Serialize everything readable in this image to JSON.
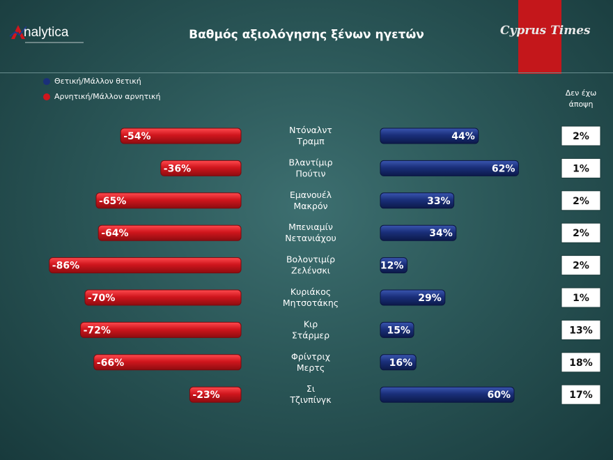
{
  "header": {
    "title": "Βαθμός αξιολόγησης ξένων ηγετών",
    "logo_left": "nalytica",
    "logo_right": "Cyprus Times"
  },
  "legend": {
    "positive": "Θετική/Μάλλον θετική",
    "negative": "Αρνητική/Μάλλον αρνητική",
    "positive_color": "#1a2f7a",
    "negative_color": "#d0161d"
  },
  "no_opinion_header": [
    "Δεν έχω",
    "άποψη"
  ],
  "chart_data": {
    "type": "bar",
    "title": "Βαθμός αξιολόγησης ξένων ηγετών",
    "orientation": "horizontal-diverging",
    "categories": [
      [
        "Ντόναλντ",
        "Τραμπ"
      ],
      [
        "Βλαντίμιρ",
        "Πούτιν"
      ],
      [
        "Εμανουέλ",
        "Μακρόν"
      ],
      [
        "Μπενιαμίν",
        "Νετανιάχου"
      ],
      [
        "Βολοντιμίρ",
        "Ζελένσκι"
      ],
      [
        "Κυριάκος",
        "Μητσοτάκης"
      ],
      [
        "Κιρ",
        "Στάρμερ"
      ],
      [
        "Φρίντριχ",
        "Μερτς"
      ],
      [
        "Σι",
        "Τζινπίνγκ"
      ]
    ],
    "series": [
      {
        "name": "Θετική/Μάλλον θετική",
        "values": [
          44,
          62,
          33,
          34,
          12,
          29,
          15,
          16,
          60
        ],
        "labels": [
          "44%",
          "62%",
          "33%",
          "34%",
          "12%",
          "29%",
          "15%",
          "16%",
          "60%"
        ],
        "color": "#1a2f7a"
      },
      {
        "name": "Αρνητική/Μάλλον αρνητική",
        "values": [
          -54,
          -36,
          -65,
          -64,
          -86,
          -70,
          -72,
          -66,
          -23
        ],
        "labels": [
          "-54%",
          "-36%",
          "-65%",
          "-64%",
          "-86%",
          "-70%",
          "-72%",
          "-66%",
          "-23%"
        ],
        "color": "#d0161d"
      },
      {
        "name": "Δεν έχω άποψη",
        "values": [
          2,
          1,
          2,
          2,
          2,
          1,
          13,
          18,
          17
        ],
        "labels": [
          "2%",
          "1%",
          "2%",
          "2%",
          "2%",
          "1%",
          "13%",
          "18%",
          "17%"
        ]
      }
    ],
    "legend_position": "top-left",
    "grid": false
  }
}
